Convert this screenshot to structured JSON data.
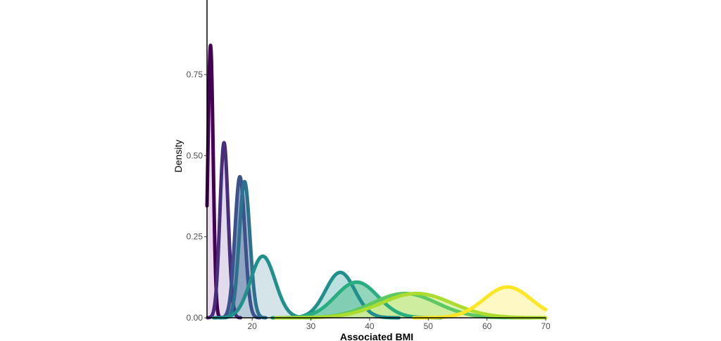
{
  "chart_data": {
    "type": "area",
    "title": "",
    "xlabel": "Associated BMI",
    "ylabel": "Density",
    "xlim": [
      12.3,
      70
    ],
    "ylim": [
      0,
      0.98
    ],
    "x_ticks": [
      20,
      30,
      40,
      50,
      60,
      70
    ],
    "x_tick_labels": [
      "20",
      "30",
      "40",
      "50",
      "60",
      "70"
    ],
    "y_ticks": [
      0,
      0.25,
      0.5,
      0.75
    ],
    "y_tick_labels": [
      "0.00",
      "0.25",
      "0.50",
      "0.75"
    ],
    "grid": false,
    "legend": "none",
    "series": [
      {
        "color": "#440154",
        "fill": "#e0cce6",
        "mean": 12.9,
        "sd": 0.45,
        "peak": 0.84
      },
      {
        "color": "#472d7b",
        "fill": "#d8cfe6",
        "mean": 15.2,
        "sd": 0.7,
        "peak": 0.54
      },
      {
        "color": "#3b528b",
        "fill": "#6e7fb0",
        "mean": 17.9,
        "sd": 0.85,
        "peak": 0.435
      },
      {
        "color": "#2c728e",
        "fill": "#8fa7c0",
        "mean": 18.7,
        "sd": 0.9,
        "peak": 0.42
      },
      {
        "color": "#21908d",
        "fill": "#c5dbe0",
        "mean": 21.8,
        "sd": 2.1,
        "peak": 0.19
      },
      {
        "color": "#21908d",
        "fill": "#a5d6d3",
        "mean": 35.0,
        "sd": 2.5,
        "peak": 0.14
      },
      {
        "color": "#28ae80",
        "fill": "#6fc8a5",
        "mean": 37.8,
        "sd": 3.6,
        "peak": 0.11
      },
      {
        "color": "#5ec962",
        "fill": "#9fe08f",
        "mean": 46.0,
        "sd": 5.5,
        "peak": 0.075
      },
      {
        "color": "#addc30",
        "fill": "#d6ef9a",
        "mean": 48.0,
        "sd": 6.0,
        "peak": 0.075
      },
      {
        "color": "#fde725",
        "fill": "#fdf6b0",
        "mean": 63.5,
        "sd": 4.0,
        "peak": 0.095
      }
    ]
  }
}
